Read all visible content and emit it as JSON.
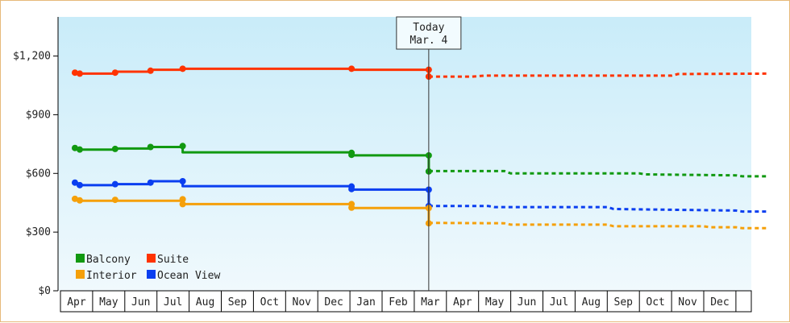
{
  "chart_data": {
    "type": "line",
    "title": "",
    "xlabel": "",
    "ylabel": "",
    "ylim": [
      0,
      1400
    ],
    "y_ticks": [
      0,
      300,
      600,
      900,
      1200
    ],
    "y_tick_labels": [
      "$0",
      "$300",
      "$600",
      "$900",
      "$1,200"
    ],
    "x_categories": [
      "Apr",
      "May",
      "Jun",
      "Jul",
      "Aug",
      "Sep",
      "Oct",
      "Nov",
      "Dec",
      "Jan",
      "Feb",
      "Mar",
      "Apr",
      "May",
      "Jun",
      "Jul",
      "Aug",
      "Sep",
      "Oct",
      "Nov",
      "Dec"
    ],
    "grid": "vertical separators on x-axis band only",
    "legend_placement": "bottom-left",
    "background": "gradient light blue",
    "today_marker": {
      "line1": "Today",
      "line2": "Mar. 4",
      "x": 10.95
    },
    "series": [
      {
        "name": "Suite",
        "color": "#ff3300",
        "history": [
          [
            -0.1,
            1115
          ],
          [
            0.0,
            1115
          ],
          [
            0.1,
            1110
          ],
          [
            1.2,
            1110
          ],
          [
            1.2,
            1120
          ],
          [
            2.3,
            1120
          ],
          [
            2.3,
            1130
          ],
          [
            3.3,
            1130
          ],
          [
            3.3,
            1135
          ],
          [
            8.55,
            1135
          ],
          [
            8.55,
            1130
          ],
          [
            10.95,
            1130
          ]
        ],
        "history_points": [
          [
            -0.05,
            1115
          ],
          [
            0.1,
            1110
          ],
          [
            1.2,
            1115
          ],
          [
            2.3,
            1125
          ],
          [
            3.3,
            1135
          ],
          [
            8.55,
            1135
          ],
          [
            10.95,
            1130
          ],
          [
            10.95,
            1095
          ]
        ],
        "forecast": [
          [
            10.95,
            1095
          ],
          [
            12.3,
            1095
          ],
          [
            12.7,
            1100
          ],
          [
            18.5,
            1100
          ],
          [
            18.7,
            1108
          ],
          [
            21.5,
            1110
          ]
        ]
      },
      {
        "name": "Balcony",
        "color": "#119911",
        "history": [
          [
            -0.1,
            730
          ],
          [
            0.0,
            730
          ],
          [
            0.1,
            722
          ],
          [
            1.2,
            722
          ],
          [
            1.2,
            727
          ],
          [
            2.3,
            727
          ],
          [
            2.3,
            735
          ],
          [
            3.3,
            735
          ],
          [
            3.3,
            708
          ],
          [
            8.55,
            708
          ],
          [
            8.55,
            692
          ],
          [
            10.95,
            692
          ]
        ],
        "history_points": [
          [
            -0.05,
            730
          ],
          [
            0.1,
            722
          ],
          [
            1.2,
            725
          ],
          [
            2.3,
            735
          ],
          [
            3.3,
            740
          ],
          [
            8.55,
            705
          ],
          [
            8.55,
            695
          ],
          [
            10.95,
            692
          ],
          [
            10.95,
            610
          ]
        ],
        "forecast": [
          [
            10.95,
            612
          ],
          [
            13.3,
            612
          ],
          [
            13.5,
            600
          ],
          [
            17.5,
            600
          ],
          [
            17.7,
            595
          ],
          [
            20.5,
            590
          ],
          [
            20.7,
            585
          ],
          [
            21.5,
            585
          ]
        ]
      },
      {
        "name": "Ocean View",
        "color": "#0a3ef0",
        "history": [
          [
            -0.1,
            553
          ],
          [
            0.0,
            553
          ],
          [
            0.1,
            540
          ],
          [
            1.2,
            540
          ],
          [
            1.2,
            545
          ],
          [
            2.3,
            545
          ],
          [
            2.3,
            560
          ],
          [
            3.3,
            560
          ],
          [
            3.3,
            535
          ],
          [
            8.55,
            535
          ],
          [
            8.55,
            517
          ],
          [
            10.95,
            517
          ]
        ],
        "history_points": [
          [
            -0.05,
            553
          ],
          [
            0.1,
            540
          ],
          [
            1.2,
            545
          ],
          [
            2.3,
            553
          ],
          [
            3.3,
            560
          ],
          [
            8.55,
            533
          ],
          [
            8.55,
            520
          ],
          [
            10.95,
            517
          ],
          [
            10.95,
            433
          ]
        ],
        "forecast": [
          [
            10.95,
            433
          ],
          [
            12.8,
            433
          ],
          [
            13.0,
            428
          ],
          [
            16.5,
            428
          ],
          [
            16.7,
            418
          ],
          [
            20.5,
            410
          ],
          [
            20.7,
            405
          ],
          [
            21.5,
            405
          ]
        ]
      },
      {
        "name": "Interior",
        "color": "#f5a00a",
        "history": [
          [
            -0.1,
            470
          ],
          [
            0.0,
            470
          ],
          [
            0.1,
            460
          ],
          [
            3.3,
            460
          ],
          [
            3.3,
            443
          ],
          [
            8.55,
            443
          ],
          [
            8.55,
            423
          ],
          [
            10.95,
            423
          ]
        ],
        "history_points": [
          [
            -0.05,
            470
          ],
          [
            0.1,
            462
          ],
          [
            1.2,
            465
          ],
          [
            3.3,
            468
          ],
          [
            3.3,
            443
          ],
          [
            8.55,
            443
          ],
          [
            8.55,
            425
          ],
          [
            10.95,
            423
          ],
          [
            10.95,
            345
          ]
        ],
        "forecast": [
          [
            10.95,
            347
          ],
          [
            13.3,
            345
          ],
          [
            13.5,
            338
          ],
          [
            16.5,
            338
          ],
          [
            16.7,
            330
          ],
          [
            19.5,
            330
          ],
          [
            19.7,
            325
          ],
          [
            20.5,
            325
          ],
          [
            20.7,
            320
          ],
          [
            21.5,
            320
          ]
        ]
      }
    ],
    "legend": [
      {
        "label": "Balcony",
        "color": "#119911"
      },
      {
        "label": "Suite",
        "color": "#ff3300"
      },
      {
        "label": "Interior",
        "color": "#f5a00a"
      },
      {
        "label": "Ocean View",
        "color": "#0a3ef0"
      }
    ]
  }
}
